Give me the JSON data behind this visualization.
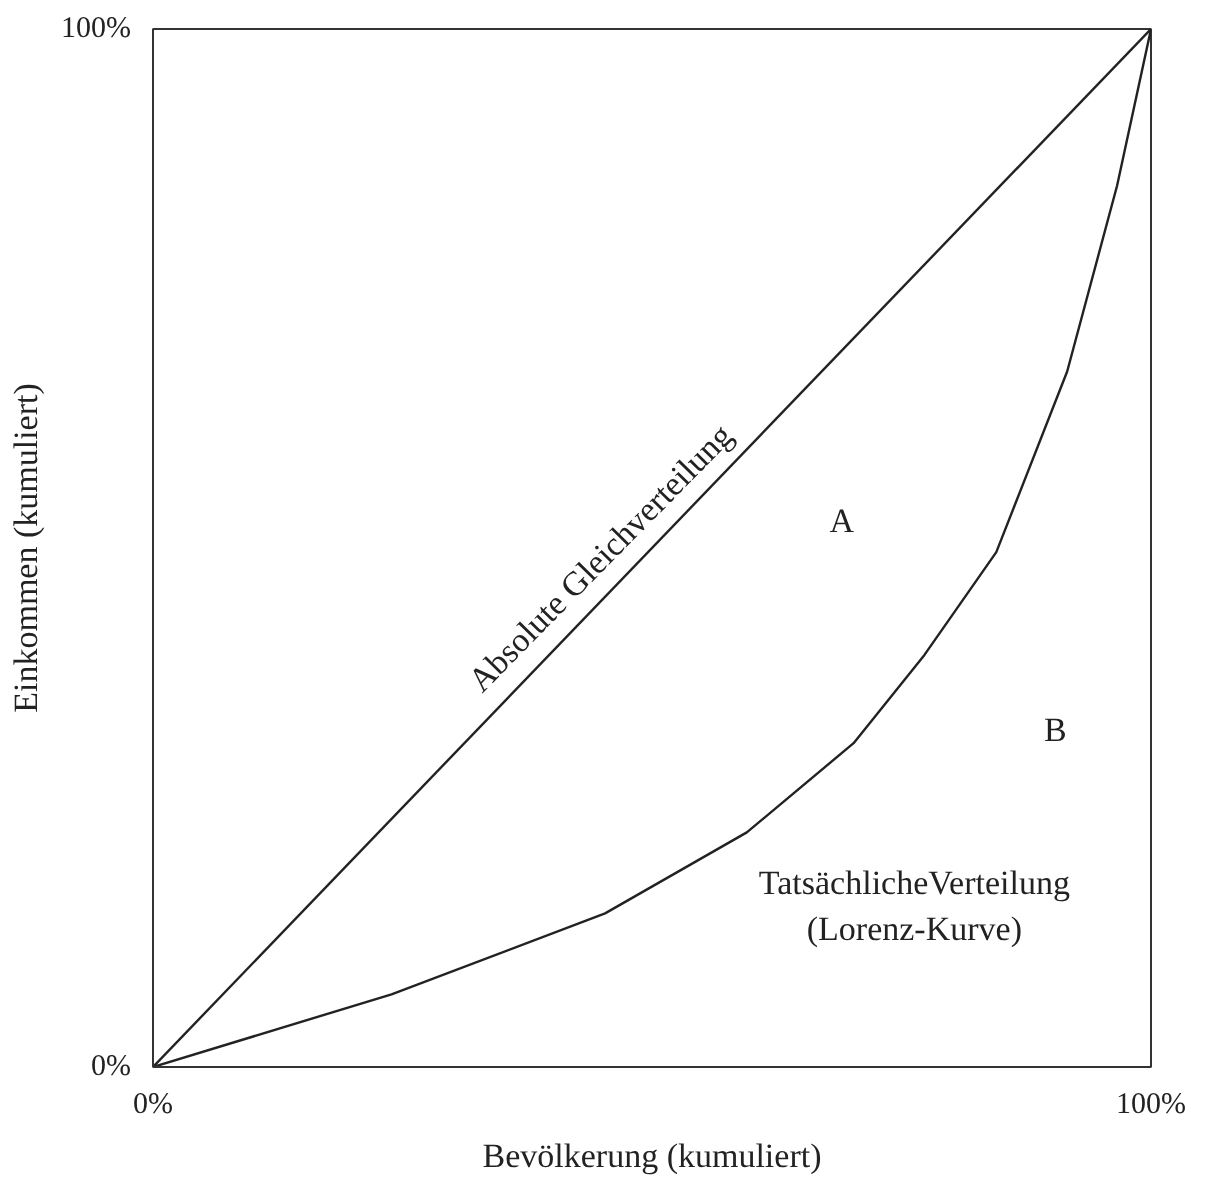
{
  "chart_data": {
    "type": "line",
    "xlabel": "Bevölkerung (kumuliert)",
    "ylabel": "Einkommen (kumuliert)",
    "xlim": [
      0,
      100
    ],
    "ylim": [
      0,
      100
    ],
    "xticks": [
      {
        "value": 0,
        "label": "0%"
      },
      {
        "value": 100,
        "label": "100%"
      }
    ],
    "yticks": [
      {
        "value": 0,
        "label": "0%"
      },
      {
        "value": 100,
        "label": "100%"
      }
    ],
    "marker": "none",
    "line_style": "solid",
    "series": [
      {
        "name": "Absolute Gleichverteilung",
        "color": "#222222",
        "x": [
          0,
          100
        ],
        "values": [
          0,
          100
        ]
      },
      {
        "name": "TatsächlicheVerteilung\n(Lorenz-Kurve)",
        "color": "#222222",
        "x": [
          0,
          23.9,
          45.3,
          59.5,
          70.2,
          77.3,
          84.5,
          91.6,
          96.6,
          100
        ],
        "values": [
          0,
          7.0,
          14.8,
          22.6,
          31.2,
          39.7,
          49.6,
          67,
          84.9,
          100
        ]
      }
    ],
    "annotations": [
      "A",
      "B"
    ]
  }
}
